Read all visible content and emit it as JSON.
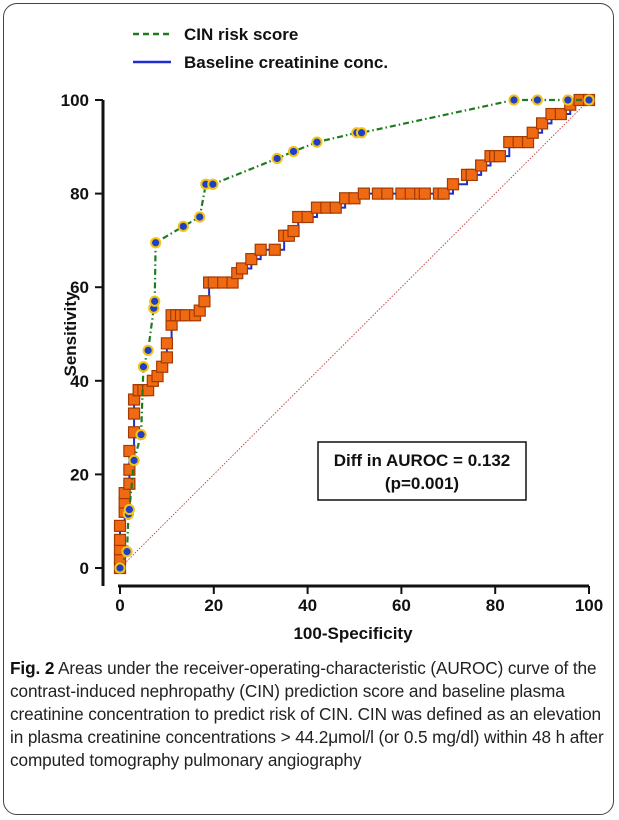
{
  "figure": {
    "label": "Fig. 2",
    "caption": "Areas under the receiver-operating-characteristic (AUROC) curve of the contrast-induced nephropathy (CIN) prediction score and baseline plasma creatinine concentration to predict risk of CIN. CIN was defined as an elevation in plasma creatinine concentrations > 44.2μmol/l (or 0.5 mg/dl) within 48 h after computed tomography pulmonary angiography"
  },
  "chart_data": {
    "type": "line",
    "xlabel": "100-Specificity",
    "ylabel": "Sensitivity",
    "xlim": [
      0,
      100
    ],
    "ylim": [
      0,
      100
    ],
    "xticks": [
      0,
      20,
      40,
      60,
      80,
      100
    ],
    "yticks": [
      0,
      20,
      40,
      60,
      80,
      100
    ],
    "legend_position": "top-left",
    "annotation": {
      "line1": "Diff in AUROC = 0.132",
      "line2": "(p=0.001)"
    },
    "reference_line": {
      "x": [
        0,
        100
      ],
      "y": [
        0,
        100
      ],
      "color": "#c0504d"
    },
    "series": [
      {
        "name": "CIN risk score",
        "style": "dashed",
        "color": "#1e7b1e",
        "marker": "circle",
        "marker_fill": "#1f3fc8",
        "marker_edge": "#f2c417",
        "x": [
          0,
          1.5,
          1.8,
          2.0,
          3.0,
          4.5,
          5.0,
          6.0,
          7.2,
          7.4,
          7.6,
          13.5,
          17.0,
          18.3,
          19.8,
          33.5,
          37.0,
          42.0,
          50.5,
          51.5,
          84.0,
          89.0,
          95.5,
          100
        ],
        "y": [
          0,
          3.5,
          11.5,
          12.5,
          23.0,
          28.5,
          43.0,
          46.5,
          55.5,
          57.0,
          69.5,
          73.0,
          75.0,
          82.0,
          82.0,
          87.5,
          89.0,
          91.0,
          93.0,
          93.0,
          100,
          100,
          100,
          100
        ]
      },
      {
        "name": "Baseline creatinine conc.",
        "style": "solid",
        "color": "#1f2fcf",
        "marker": "square",
        "marker_fill": "#f06a14",
        "marker_edge": "#a33a00",
        "x": [
          0,
          0,
          0,
          0,
          0,
          1,
          1,
          1,
          2,
          2,
          2,
          3,
          3,
          3,
          4,
          4,
          5,
          6,
          7,
          8,
          9,
          10,
          10,
          11,
          11,
          12,
          13,
          14,
          16,
          17,
          18,
          19,
          20,
          22,
          24,
          25,
          26,
          28,
          30,
          33,
          35,
          36,
          37,
          38,
          40,
          42,
          44,
          46,
          48,
          50,
          52,
          55,
          57,
          60,
          62,
          64,
          65,
          68,
          69,
          71,
          74,
          75,
          77,
          79,
          80,
          81,
          83,
          85,
          87,
          88,
          90,
          92,
          94,
          96,
          98,
          100
        ],
        "y": [
          0,
          2,
          4,
          6,
          9,
          12,
          14,
          16,
          18,
          21,
          25,
          29,
          33,
          36,
          38,
          38,
          38,
          38,
          40,
          41,
          43,
          45,
          48,
          52,
          54,
          54,
          54,
          54,
          54,
          55,
          57,
          61,
          61,
          61,
          61,
          63,
          64,
          66,
          68,
          68,
          71,
          71,
          72,
          75,
          75,
          77,
          77,
          77,
          79,
          79,
          80,
          80,
          80,
          80,
          80,
          80,
          80,
          80,
          80,
          82,
          84,
          84,
          86,
          88,
          88,
          88,
          91,
          91,
          91,
          93,
          95,
          97,
          97,
          99,
          100,
          100
        ]
      }
    ]
  }
}
